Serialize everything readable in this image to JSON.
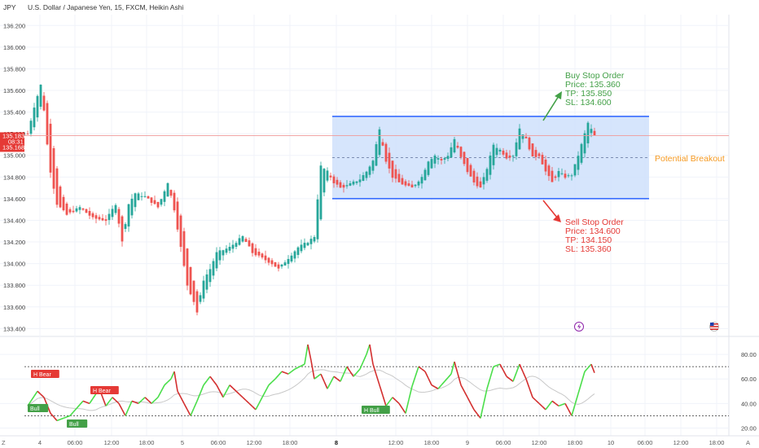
{
  "header": {
    "symbol_fragment": "JPY",
    "title": "U.S. Dollar / Japanese Yen, 15, FXCM, Heikin Ashi"
  },
  "colors": {
    "bull": "#26a69a",
    "bear": "#ef5350",
    "box_fill": "#cfe0fb",
    "box_border": "#2962ff",
    "buy": "#43a047",
    "sell": "#e53935",
    "breakout": "#f59a23",
    "rsi_bull": "#4ade4a",
    "rsi_bear": "#d32f2f",
    "rsi_ma": "#c8c8c8"
  },
  "price_axis": {
    "ticks": [
      "136.200",
      "136.000",
      "135.800",
      "135.600",
      "135.400",
      "135.200",
      "135.000",
      "134.800",
      "134.600",
      "134.400",
      "134.200",
      "134.000",
      "133.800",
      "133.600",
      "133.400"
    ],
    "last_price": "135.183",
    "countdown": "08:31",
    "prev_price": "135.168"
  },
  "time_axis": {
    "labels": [
      "4",
      "06:00",
      "12:00",
      "18:00",
      "5",
      "06:00",
      "12:00",
      "18:00",
      "8",
      "12:00",
      "18:00",
      "9",
      "06:00",
      "12:00",
      "18:00",
      "10",
      "06:00",
      "12:00",
      "18:00"
    ],
    "bold_labels": [
      "8"
    ],
    "corner_left": "Z",
    "corner_right": "A"
  },
  "annotations": {
    "buy_title": "Buy Stop Order",
    "buy_price": "Price: 135.360",
    "buy_tp": "TP: 135.850",
    "buy_sl": "SL: 134.600",
    "sell_title": "Sell Stop Order",
    "sell_price": "Price: 134.600",
    "sell_tp": "TP: 134.150",
    "sell_sl": "SL: 135.360",
    "breakout": "Potential Breakout"
  },
  "rsi": {
    "ticks": [
      "80.00",
      "60.00",
      "40.00",
      "20.00"
    ],
    "upper_level": 70,
    "lower_level": 30,
    "labels": [
      {
        "text": "H Bear",
        "type": "bear"
      },
      {
        "text": "Bull",
        "type": "bull"
      },
      {
        "text": "Bull",
        "type": "bull"
      },
      {
        "text": "H Bear",
        "type": "bear"
      },
      {
        "text": "H Bull",
        "type": "bull"
      }
    ]
  },
  "chart_data": {
    "type": "candlestick",
    "title": "U.S. Dollar / Japanese Yen, 15, FXCM, Heikin Ashi",
    "ylim": [
      133.35,
      136.3
    ],
    "range_box": {
      "top": 135.36,
      "bottom": 134.6,
      "mid": 134.98
    },
    "last_price": 135.183,
    "path_keypoints": [
      [
        0,
        135.2
      ],
      [
        2,
        135.45
      ],
      [
        4,
        135.65
      ],
      [
        5,
        135.42
      ],
      [
        6,
        135.1
      ],
      [
        7,
        134.85
      ],
      [
        9,
        134.55
      ],
      [
        12,
        134.45
      ],
      [
        16,
        134.52
      ],
      [
        20,
        134.42
      ],
      [
        24,
        134.4
      ],
      [
        27,
        134.55
      ],
      [
        29,
        134.2
      ],
      [
        31,
        134.55
      ],
      [
        33,
        134.65
      ],
      [
        36,
        134.62
      ],
      [
        40,
        134.52
      ],
      [
        43,
        134.75
      ],
      [
        45,
        134.5
      ],
      [
        47,
        134.15
      ],
      [
        49,
        133.8
      ],
      [
        51,
        133.65
      ],
      [
        52,
        133.55
      ],
      [
        54,
        133.85
      ],
      [
        56,
        133.95
      ],
      [
        58,
        134.1
      ],
      [
        62,
        134.15
      ],
      [
        66,
        134.25
      ],
      [
        69,
        134.1
      ],
      [
        72,
        134.05
      ],
      [
        75,
        134.0
      ],
      [
        77,
        133.95
      ],
      [
        80,
        134.05
      ],
      [
        83,
        134.15
      ],
      [
        86,
        134.2
      ],
      [
        88,
        134.25
      ],
      [
        89,
        134.6
      ],
      [
        90,
        134.9
      ],
      [
        92,
        134.85
      ],
      [
        94,
        134.75
      ],
      [
        96,
        134.7
      ],
      [
        98,
        134.72
      ],
      [
        100,
        134.75
      ],
      [
        102,
        134.78
      ],
      [
        104,
        134.85
      ],
      [
        106,
        134.95
      ],
      [
        108,
        135.25
      ],
      [
        110,
        134.95
      ],
      [
        112,
        134.8
      ],
      [
        114,
        134.75
      ],
      [
        116,
        134.72
      ],
      [
        118,
        134.7
      ],
      [
        121,
        134.8
      ],
      [
        123,
        134.95
      ],
      [
        125,
        135.0
      ],
      [
        127,
        134.95
      ],
      [
        129,
        135.0
      ],
      [
        131,
        135.15
      ],
      [
        133,
        134.98
      ],
      [
        135,
        134.85
      ],
      [
        137,
        134.75
      ],
      [
        139,
        134.7
      ],
      [
        141,
        134.88
      ],
      [
        143,
        135.1
      ],
      [
        145,
        135.05
      ],
      [
        147,
        134.98
      ],
      [
        149,
        135.0
      ],
      [
        151,
        135.25
      ],
      [
        153,
        135.15
      ],
      [
        155,
        134.98
      ],
      [
        157,
        135.0
      ],
      [
        159,
        134.85
      ],
      [
        161,
        134.75
      ],
      [
        163,
        134.85
      ],
      [
        165,
        134.8
      ],
      [
        167,
        134.82
      ],
      [
        169,
        135.0
      ],
      [
        171,
        135.2
      ],
      [
        172,
        135.3
      ],
      [
        174,
        135.18
      ]
    ],
    "rsi_keypoints": [
      [
        0,
        38
      ],
      [
        3,
        50
      ],
      [
        5,
        45
      ],
      [
        7,
        32
      ],
      [
        9,
        26
      ],
      [
        11,
        28
      ],
      [
        13,
        30
      ],
      [
        15,
        36
      ],
      [
        17,
        42
      ],
      [
        19,
        40
      ],
      [
        22,
        52
      ],
      [
        24,
        38
      ],
      [
        26,
        45
      ],
      [
        28,
        40
      ],
      [
        30,
        30
      ],
      [
        32,
        42
      ],
      [
        34,
        40
      ],
      [
        36,
        45
      ],
      [
        38,
        40
      ],
      [
        40,
        45
      ],
      [
        42,
        55
      ],
      [
        44,
        60
      ],
      [
        45,
        66
      ],
      [
        46,
        50
      ],
      [
        48,
        40
      ],
      [
        50,
        30
      ],
      [
        52,
        42
      ],
      [
        54,
        55
      ],
      [
        56,
        62
      ],
      [
        58,
        55
      ],
      [
        60,
        45
      ],
      [
        62,
        55
      ],
      [
        64,
        50
      ],
      [
        66,
        45
      ],
      [
        68,
        40
      ],
      [
        70,
        35
      ],
      [
        72,
        45
      ],
      [
        74,
        55
      ],
      [
        76,
        60
      ],
      [
        78,
        66
      ],
      [
        80,
        64
      ],
      [
        82,
        68
      ],
      [
        85,
        72
      ],
      [
        86,
        88
      ],
      [
        87,
        75
      ],
      [
        88,
        60
      ],
      [
        90,
        64
      ],
      [
        92,
        52
      ],
      [
        94,
        62
      ],
      [
        96,
        58
      ],
      [
        98,
        70
      ],
      [
        100,
        62
      ],
      [
        102,
        68
      ],
      [
        104,
        80
      ],
      [
        105,
        88
      ],
      [
        106,
        72
      ],
      [
        108,
        55
      ],
      [
        110,
        38
      ],
      [
        112,
        45
      ],
      [
        114,
        40
      ],
      [
        116,
        32
      ],
      [
        118,
        54
      ],
      [
        120,
        70
      ],
      [
        122,
        66
      ],
      [
        124,
        55
      ],
      [
        126,
        52
      ],
      [
        128,
        58
      ],
      [
        130,
        64
      ],
      [
        131,
        74
      ],
      [
        133,
        55
      ],
      [
        135,
        45
      ],
      [
        137,
        35
      ],
      [
        139,
        28
      ],
      [
        141,
        52
      ],
      [
        143,
        70
      ],
      [
        145,
        72
      ],
      [
        147,
        62
      ],
      [
        149,
        58
      ],
      [
        151,
        72
      ],
      [
        153,
        60
      ],
      [
        155,
        45
      ],
      [
        157,
        40
      ],
      [
        159,
        35
      ],
      [
        161,
        42
      ],
      [
        163,
        38
      ],
      [
        165,
        40
      ],
      [
        167,
        30
      ],
      [
        169,
        48
      ],
      [
        171,
        66
      ],
      [
        173,
        72
      ],
      [
        174,
        65
      ]
    ],
    "rsi_ylim": [
      15,
      90
    ]
  }
}
